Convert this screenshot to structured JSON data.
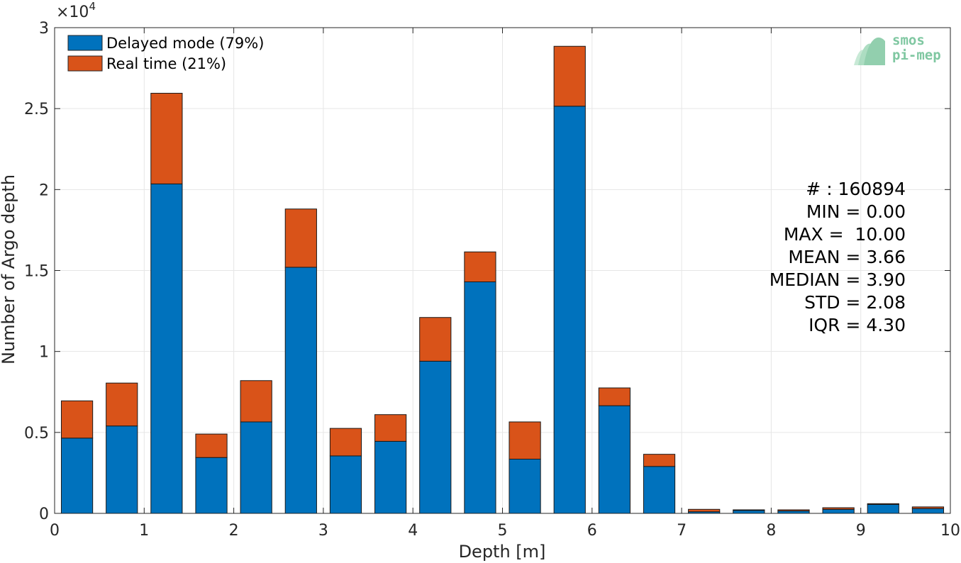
{
  "chart_data": {
    "type": "bar",
    "stacked": true,
    "x": [
      0.25,
      0.75,
      1.25,
      1.75,
      2.25,
      2.75,
      3.25,
      3.75,
      4.25,
      4.75,
      5.25,
      5.75,
      6.25,
      6.75,
      7.25,
      7.75,
      8.25,
      8.75,
      9.25,
      9.75
    ],
    "series": [
      {
        "name": "Delayed mode (79%)",
        "color": "#0072BD",
        "values": [
          4650,
          5400,
          20350,
          3450,
          5650,
          15200,
          3550,
          4450,
          9400,
          14300,
          3350,
          25150,
          6650,
          2900,
          100,
          180,
          150,
          250,
          550,
          300
        ]
      },
      {
        "name": "Real time (21%)",
        "color": "#D95319",
        "values": [
          2300,
          2650,
          5600,
          1450,
          2550,
          3600,
          1700,
          1650,
          2700,
          1850,
          2300,
          3700,
          1100,
          750,
          150,
          40,
          70,
          100,
          50,
          100
        ]
      }
    ],
    "xlabel": "Depth [m]",
    "ylabel": "Number of Argo depth",
    "xlim": [
      0,
      10
    ],
    "ylim": [
      0,
      30000
    ],
    "x_ticks": [
      "0",
      "1",
      "2",
      "3",
      "4",
      "5",
      "6",
      "7",
      "8",
      "9",
      "10"
    ],
    "y_ticks": [
      "0",
      "0.5",
      "1",
      "1.5",
      "2",
      "2.5",
      "3"
    ],
    "y_exponent_label": "×10",
    "y_exponent_power": "4",
    "grid": true,
    "legend_position": "top-left",
    "stats": [
      "# : 160894",
      "MIN = 0.00",
      "MAX =  10.00",
      "MEAN = 3.66",
      "MEDIAN = 3.90",
      "STD = 2.08",
      "IQR = 4.30"
    ]
  },
  "logo": {
    "line1": "smos",
    "line2": "pi-mep"
  }
}
